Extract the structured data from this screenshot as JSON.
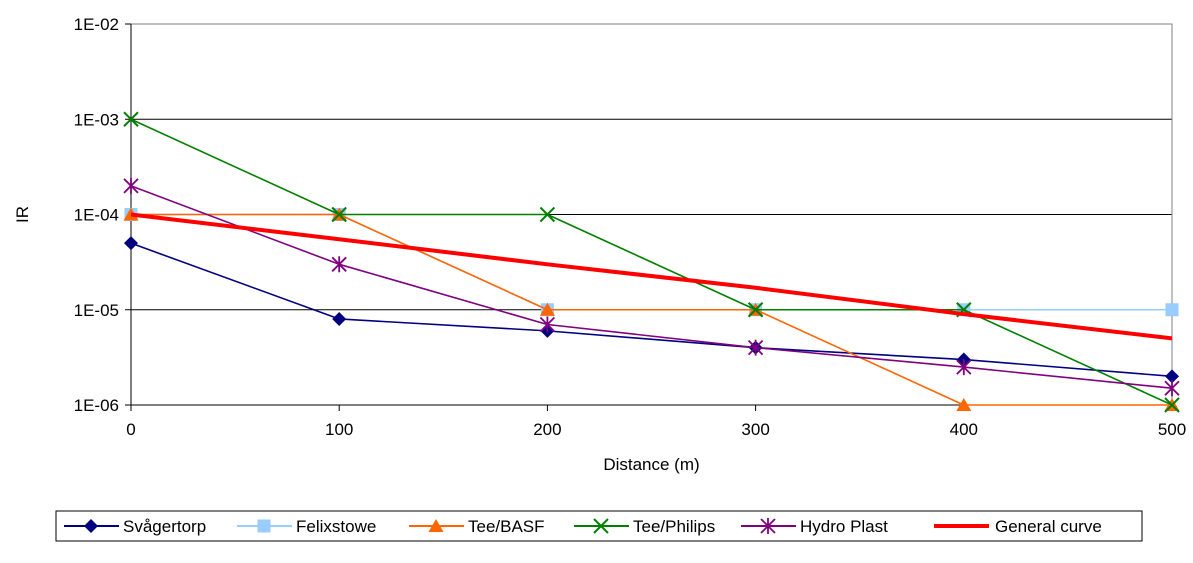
{
  "chart_data": {
    "type": "line",
    "title": "",
    "xlabel": "Distance (m)",
    "ylabel": "IR",
    "x": [
      0,
      100,
      200,
      300,
      400,
      500
    ],
    "xlim": [
      0,
      500
    ],
    "ylim": [
      1e-06,
      0.01
    ],
    "yscale": "log",
    "x_ticks": [
      0,
      100,
      200,
      300,
      400,
      500
    ],
    "y_ticks": [
      1e-06,
      1e-05,
      0.0001,
      0.001,
      0.01
    ],
    "y_tick_labels": [
      "1E-06",
      "1E-05",
      "1E-04",
      "1E-03",
      "1E-02"
    ],
    "grid": "horizontal",
    "legend_position": "bottom",
    "series": [
      {
        "name": "Svågertorp",
        "color": "#000080",
        "marker": "diamond",
        "values": [
          5e-05,
          8e-06,
          6e-06,
          4e-06,
          3e-06,
          2e-06
        ]
      },
      {
        "name": "Felixstowe",
        "color": "#99ccff",
        "marker": "square",
        "values": [
          0.0001,
          0.0001,
          1e-05,
          1e-05,
          1e-05,
          1e-05
        ]
      },
      {
        "name": "Tee/BASF",
        "color": "#ff6600",
        "marker": "triangle",
        "values": [
          0.0001,
          0.0001,
          1e-05,
          1e-05,
          1e-06,
          1e-06
        ]
      },
      {
        "name": "Tee/Philips",
        "color": "#008000",
        "marker": "x",
        "values": [
          0.001,
          0.0001,
          0.0001,
          1e-05,
          1e-05,
          1e-06
        ]
      },
      {
        "name": "Hydro Plast",
        "color": "#800080",
        "marker": "star",
        "values": [
          0.0002,
          3e-05,
          7e-06,
          4e-06,
          2.5e-06,
          1.5e-06
        ]
      },
      {
        "name": "General curve",
        "color": "#ff0000",
        "marker": "none",
        "values": [
          0.0001,
          5.5e-05,
          3e-05,
          1.7e-05,
          9e-06,
          5e-06
        ]
      }
    ]
  }
}
